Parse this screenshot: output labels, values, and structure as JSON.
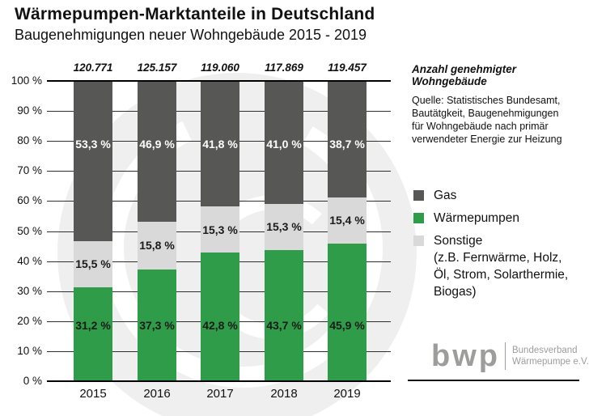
{
  "header": {
    "title": "Wärmepumpen-Marktanteile in Deutschland",
    "subtitle": "Baugenehmigungen neuer Wohngebäude 2015 - 2019"
  },
  "right_panel": {
    "note": "Anzahl genehmigter Wohngebäude",
    "source_lines": [
      "Quelle: Statistisches Bundesamt,",
      "Bautätgkeit, Baugenehmigungen",
      "für Wohngebäude nach primär",
      "verwendeter Energie zur Heizung"
    ],
    "legend": [
      {
        "label": "Gas",
        "sublabel": "",
        "color": "#575756"
      },
      {
        "label": "Wärmepumpen",
        "sublabel": "",
        "color": "#2e9c48"
      },
      {
        "label": "Sonstige",
        "sublabel": "(z.B. Fernwärme, Holz, Öl, Strom, Solarthermie, Biogas)",
        "color": "#d9d9d9"
      }
    ],
    "logo": {
      "text": "bwp",
      "org_line1": "Bundesverband",
      "org_line2": "Wärmepumpe e.V."
    }
  },
  "chart_data": {
    "type": "bar",
    "stacked": true,
    "title": "Wärmepumpen-Marktanteile in Deutschland",
    "subtitle": "Baugenehmigungen neuer Wohngebäude 2015 - 2019",
    "categories": [
      "2015",
      "2016",
      "2017",
      "2018",
      "2019"
    ],
    "totals_note": "Anzahl genehmigter Wohngebäude",
    "totals_labels": [
      "120.771",
      "125.157",
      "119.060",
      "117.869",
      "119.457"
    ],
    "series": [
      {
        "name": "Wärmepumpen",
        "color": "#2e9c48",
        "label_color": "#1a1a1a",
        "values": [
          31.2,
          37.3,
          42.8,
          43.7,
          45.9
        ],
        "labels": [
          "31,2 %",
          "37,3 %",
          "42,8 %",
          "43,7 %",
          "45,9 %"
        ]
      },
      {
        "name": "Sonstige",
        "color": "#d9d9d9",
        "label_color": "#1a1a1a",
        "values": [
          15.5,
          15.8,
          15.3,
          15.3,
          15.4
        ],
        "labels": [
          "15,5 %",
          "15,8 %",
          "15,3 %",
          "15,3 %",
          "15,4 %"
        ]
      },
      {
        "name": "Gas",
        "color": "#575756",
        "label_color": "#ffffff",
        "values": [
          53.3,
          46.9,
          41.8,
          41.0,
          38.7
        ],
        "labels": [
          "53,3 %",
          "46,9 %",
          "41,8 %",
          "41,0 %",
          "38,7 %"
        ]
      }
    ],
    "ylim": [
      0,
      100
    ],
    "y_ticks": [
      "0 %",
      "10 %",
      "20 %",
      "30 %",
      "40 %",
      "50 %",
      "60 %",
      "70 %",
      "80 %",
      "90 %",
      "100 %"
    ],
    "grid": "horizontal, every 10 %",
    "legend_position": "right",
    "xlabel": "",
    "ylabel": ""
  }
}
